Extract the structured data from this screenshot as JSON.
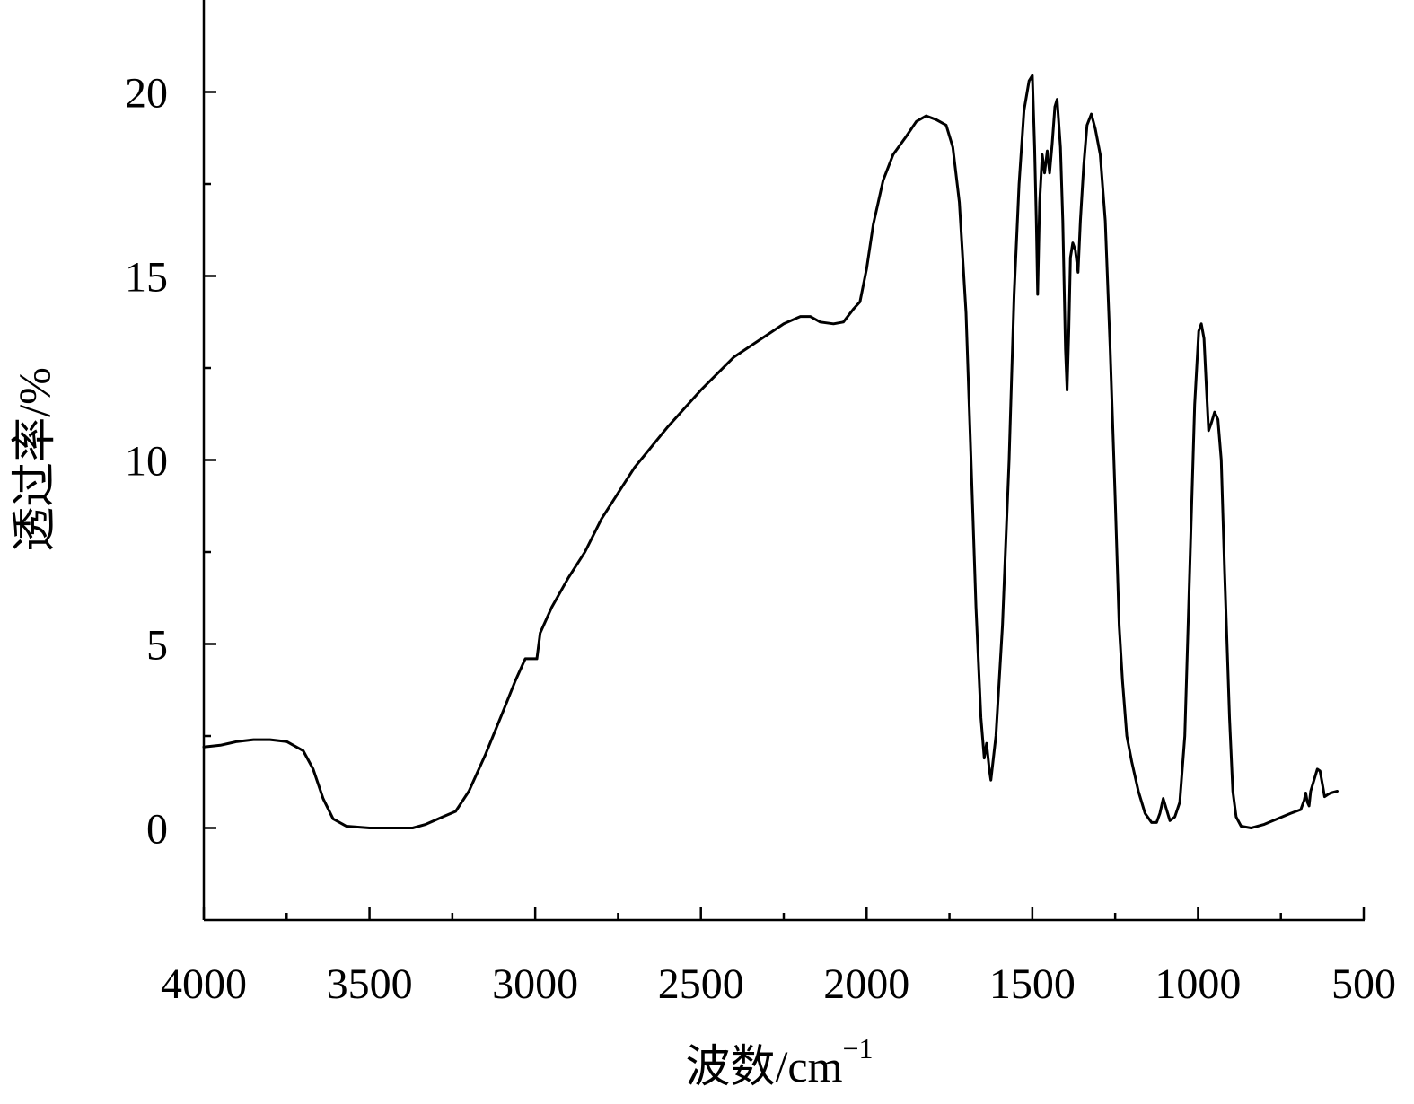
{
  "chart_data": {
    "type": "line",
    "xlabel": "波数/cm",
    "xlabel_sup": "−1",
    "ylabel": "透过率/%",
    "xlim": [
      4000,
      500
    ],
    "ylim": [
      -2.5,
      22.5
    ],
    "x_reversed": true,
    "grid": false,
    "legend": "none",
    "x_ticks": [
      4000,
      3500,
      3000,
      2500,
      2000,
      1500,
      1000,
      500
    ],
    "x_minor_ticks": [
      3750,
      3250,
      2750,
      2250,
      1750,
      1250,
      750
    ],
    "y_ticks": [
      0,
      5,
      10,
      15,
      20
    ],
    "y_minor_ticks": [
      2.5,
      7.5,
      12.5,
      17.5
    ],
    "x_tick_labels": [
      "4000",
      "3500",
      "3000",
      "2500",
      "2000",
      "1500",
      "1000",
      "500"
    ],
    "y_tick_labels": [
      "0",
      "5",
      "10",
      "15",
      "20"
    ],
    "series": [
      {
        "color": "#000000",
        "points": [
          [
            4000,
            2.2
          ],
          [
            3950,
            2.25
          ],
          [
            3900,
            2.35
          ],
          [
            3850,
            2.4
          ],
          [
            3800,
            2.4
          ],
          [
            3750,
            2.35
          ],
          [
            3700,
            2.1
          ],
          [
            3670,
            1.6
          ],
          [
            3640,
            0.8
          ],
          [
            3610,
            0.25
          ],
          [
            3570,
            0.05
          ],
          [
            3500,
            0.0
          ],
          [
            3450,
            0.0
          ],
          [
            3370,
            0.0
          ],
          [
            3330,
            0.1
          ],
          [
            3280,
            0.3
          ],
          [
            3240,
            0.45
          ],
          [
            3200,
            1.0
          ],
          [
            3150,
            2.0
          ],
          [
            3100,
            3.1
          ],
          [
            3060,
            4.0
          ],
          [
            3030,
            4.6
          ],
          [
            3010,
            4.6
          ],
          [
            2995,
            4.6
          ],
          [
            2985,
            5.3
          ],
          [
            2950,
            6.0
          ],
          [
            2900,
            6.8
          ],
          [
            2850,
            7.5
          ],
          [
            2800,
            8.4
          ],
          [
            2750,
            9.1
          ],
          [
            2700,
            9.8
          ],
          [
            2600,
            10.9
          ],
          [
            2500,
            11.9
          ],
          [
            2400,
            12.8
          ],
          [
            2300,
            13.4
          ],
          [
            2250,
            13.7
          ],
          [
            2200,
            13.9
          ],
          [
            2170,
            13.9
          ],
          [
            2140,
            13.75
          ],
          [
            2100,
            13.7
          ],
          [
            2070,
            13.75
          ],
          [
            2040,
            14.1
          ],
          [
            2020,
            14.3
          ],
          [
            2000,
            15.2
          ],
          [
            1980,
            16.4
          ],
          [
            1950,
            17.6
          ],
          [
            1920,
            18.3
          ],
          [
            1880,
            18.8
          ],
          [
            1850,
            19.2
          ],
          [
            1820,
            19.35
          ],
          [
            1790,
            19.25
          ],
          [
            1760,
            19.1
          ],
          [
            1740,
            18.5
          ],
          [
            1720,
            17.0
          ],
          [
            1700,
            14.0
          ],
          [
            1685,
            10.0
          ],
          [
            1670,
            6.0
          ],
          [
            1655,
            3.0
          ],
          [
            1645,
            1.9
          ],
          [
            1638,
            2.3
          ],
          [
            1630,
            1.6
          ],
          [
            1625,
            1.3
          ],
          [
            1610,
            2.5
          ],
          [
            1590,
            5.5
          ],
          [
            1570,
            10.0
          ],
          [
            1555,
            14.5
          ],
          [
            1540,
            17.5
          ],
          [
            1525,
            19.5
          ],
          [
            1510,
            20.3
          ],
          [
            1500,
            20.45
          ],
          [
            1493,
            18.5
          ],
          [
            1488,
            16.5
          ],
          [
            1484,
            14.5
          ],
          [
            1478,
            17.0
          ],
          [
            1470,
            18.3
          ],
          [
            1463,
            17.8
          ],
          [
            1455,
            18.4
          ],
          [
            1448,
            17.8
          ],
          [
            1440,
            18.6
          ],
          [
            1432,
            19.6
          ],
          [
            1425,
            19.8
          ],
          [
            1415,
            18.5
          ],
          [
            1408,
            16.5
          ],
          [
            1400,
            13.0
          ],
          [
            1395,
            11.9
          ],
          [
            1390,
            13.5
          ],
          [
            1385,
            15.5
          ],
          [
            1378,
            15.9
          ],
          [
            1370,
            15.7
          ],
          [
            1362,
            15.1
          ],
          [
            1355,
            16.5
          ],
          [
            1345,
            18.0
          ],
          [
            1335,
            19.1
          ],
          [
            1322,
            19.4
          ],
          [
            1310,
            19.0
          ],
          [
            1295,
            18.3
          ],
          [
            1280,
            16.5
          ],
          [
            1265,
            13.0
          ],
          [
            1250,
            9.0
          ],
          [
            1238,
            5.5
          ],
          [
            1228,
            4.0
          ],
          [
            1215,
            2.5
          ],
          [
            1200,
            1.8
          ],
          [
            1180,
            1.0
          ],
          [
            1160,
            0.4
          ],
          [
            1140,
            0.15
          ],
          [
            1125,
            0.15
          ],
          [
            1115,
            0.4
          ],
          [
            1105,
            0.8
          ],
          [
            1095,
            0.5
          ],
          [
            1085,
            0.2
          ],
          [
            1070,
            0.3
          ],
          [
            1055,
            0.7
          ],
          [
            1040,
            2.5
          ],
          [
            1025,
            7.0
          ],
          [
            1010,
            11.5
          ],
          [
            998,
            13.5
          ],
          [
            990,
            13.7
          ],
          [
            982,
            13.3
          ],
          [
            975,
            12.0
          ],
          [
            968,
            10.8
          ],
          [
            960,
            11.0
          ],
          [
            950,
            11.3
          ],
          [
            940,
            11.1
          ],
          [
            930,
            10.0
          ],
          [
            920,
            7.0
          ],
          [
            905,
            3.0
          ],
          [
            895,
            1.0
          ],
          [
            885,
            0.3
          ],
          [
            870,
            0.05
          ],
          [
            840,
            0.0
          ],
          [
            800,
            0.1
          ],
          [
            760,
            0.25
          ],
          [
            720,
            0.4
          ],
          [
            690,
            0.5
          ],
          [
            680,
            0.75
          ],
          [
            675,
            0.95
          ],
          [
            670,
            0.7
          ],
          [
            665,
            0.6
          ],
          [
            660,
            1.0
          ],
          [
            650,
            1.3
          ],
          [
            640,
            1.6
          ],
          [
            632,
            1.55
          ],
          [
            625,
            1.2
          ],
          [
            618,
            0.85
          ],
          [
            610,
            0.9
          ],
          [
            600,
            0.95
          ],
          [
            580,
            1.0
          ]
        ]
      }
    ]
  }
}
